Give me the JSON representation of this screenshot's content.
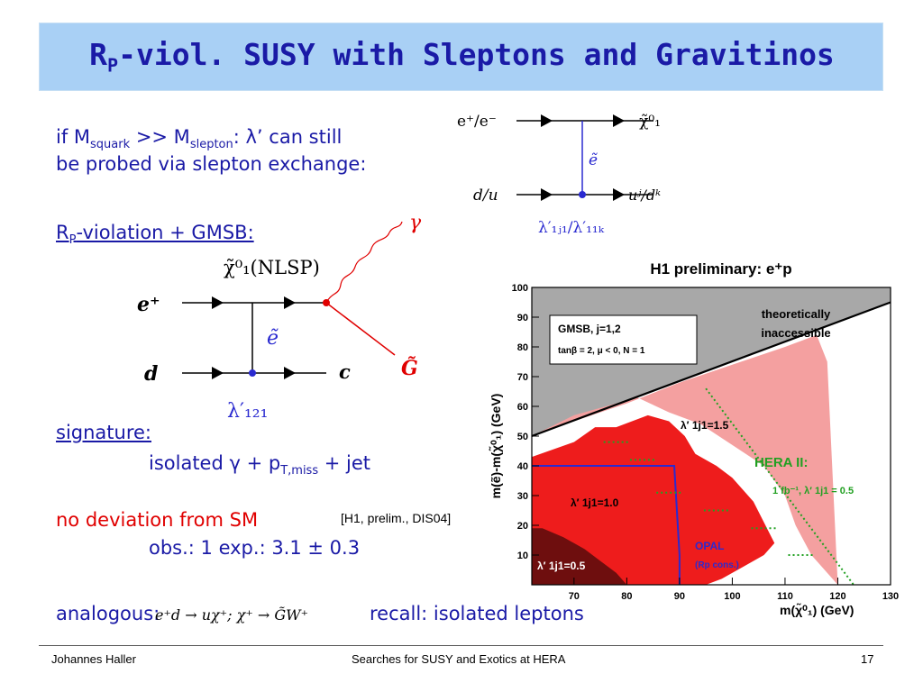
{
  "header": {
    "title_prefix": "R",
    "title_sub": "P",
    "title_rest": "-viol. SUSY with Sleptons and Gravitinos"
  },
  "intro": {
    "line1_a": "if M",
    "line1_sub1": "squark",
    "line1_b": " >> M",
    "line1_sub2": "slepton",
    "line1_c": ":  λ’ can still",
    "line2": "be probed via slepton exchange:"
  },
  "gmsb": {
    "r": "R",
    "sub": "P",
    "rest": "-violation + GMSB:"
  },
  "diagram_top": {
    "left_top": "e⁺/e⁻",
    "left_bottom": "d/u",
    "right_top": "χ̃⁰₁",
    "right_bottom": "uʲ/dᵏ",
    "middle": "ẽ",
    "coupling": "λ′₁ⱼ₁/λ′₁₁ₖ"
  },
  "diagram_main": {
    "nlsp": "χ̃⁰₁(NLSP)",
    "photon": "γ",
    "gravitino": "G̃",
    "left_top": "e⁺",
    "left_bottom": "d",
    "right_bottom": "c",
    "middle": "ẽ",
    "coupling": "λ′₁₂₁"
  },
  "signature": {
    "label": "signature:",
    "text_a": "isolated γ + p",
    "text_sub": "T,miss",
    "text_b": " + jet"
  },
  "result": {
    "nodev": "no deviation from SM",
    "ref": "[H1, prelim., DIS04]",
    "obs": "obs.: 1   exp.: 3.1 ± 0.3"
  },
  "analogous": {
    "label": "analogous:",
    "formula": "e⁺d → uχ⁺; χ⁺ → G̃W⁺",
    "recall": "recall: isolated leptons"
  },
  "footer": {
    "author": "Johannes Haller",
    "talk": "Searches for SUSY and Exotics at HERA",
    "page": "17"
  },
  "chart_data": {
    "type": "area",
    "title": "H1 preliminary: e⁺p",
    "xlabel": "m(χ̃⁰₁) (GeV)",
    "ylabel": "m(ẽ)-m(χ̃⁰₁) (GeV)",
    "xlim": [
      62,
      130
    ],
    "ylim": [
      0,
      100
    ],
    "x_ticks": [
      70,
      80,
      90,
      100,
      110,
      120,
      130
    ],
    "y_ticks": [
      10,
      20,
      30,
      40,
      50,
      60,
      70,
      80,
      90,
      100
    ],
    "legend_box": {
      "line1": "GMSB, j=1,2",
      "line2": "tanβ = 2,  μ < 0,  N = 1"
    },
    "annotations": {
      "inaccessible": [
        "theoretically",
        "inaccessible"
      ],
      "l15": "λ′ 1j1=1.5",
      "l10": "λ′ 1j1=1.0",
      "l05": "λ′ 1j1=0.5",
      "hera": "HERA II:",
      "hera_sub": "1 fb⁻¹, λ′ 1j1 = 0.5",
      "opal": "OPAL",
      "opal_sub": "(Rp cons.)"
    },
    "boundary_line": {
      "x": [
        62,
        130
      ],
      "y": [
        50,
        95
      ]
    },
    "regions": [
      {
        "name": "λ′=1.5",
        "color": "#f4a0a0",
        "x": [
          62,
          62,
          70,
          80,
          90,
          100,
          110,
          116,
          118,
          120,
          115,
          112,
          110,
          106,
          100,
          94,
          88,
          82,
          76,
          70,
          62
        ],
        "y": [
          0,
          50,
          55,
          61,
          68,
          74,
          80,
          84,
          75,
          0,
          10,
          20,
          30,
          40,
          47,
          54,
          58,
          63,
          60,
          57,
          50
        ]
      },
      {
        "name": "λ′=1.0",
        "color": "#ee1c1c",
        "x": [
          62,
          62,
          70,
          74,
          78,
          84,
          88,
          91,
          93,
          97,
          100,
          104,
          108,
          106,
          102,
          98,
          95,
          92,
          90,
          86,
          80,
          74,
          70,
          66,
          62
        ],
        "y": [
          0,
          43,
          48,
          53,
          53,
          57,
          55,
          50,
          44,
          40,
          36,
          28,
          14,
          10,
          6,
          2,
          0,
          0,
          0,
          0,
          0,
          0,
          0,
          0,
          0
        ]
      },
      {
        "name": "λ′=0.5",
        "color": "#6e0e0e",
        "x": [
          62,
          62,
          64,
          68,
          72,
          75,
          78,
          80,
          80,
          62
        ],
        "y": [
          0,
          19,
          19,
          16,
          12,
          8,
          4,
          0,
          0,
          0
        ]
      }
    ],
    "opal_line": {
      "x": [
        62,
        89,
        90,
        90
      ],
      "y": [
        40,
        40,
        10,
        0
      ]
    },
    "hera_line": {
      "x": [
        95,
        123
      ],
      "y": [
        66,
        0
      ]
    },
    "hera_ticks": [
      {
        "x": 78,
        "y": 48
      },
      {
        "x": 83,
        "y": 42
      },
      {
        "x": 88,
        "y": 31
      },
      {
        "x": 97,
        "y": 25
      },
      {
        "x": 106,
        "y": 19
      },
      {
        "x": 113,
        "y": 10
      }
    ]
  }
}
